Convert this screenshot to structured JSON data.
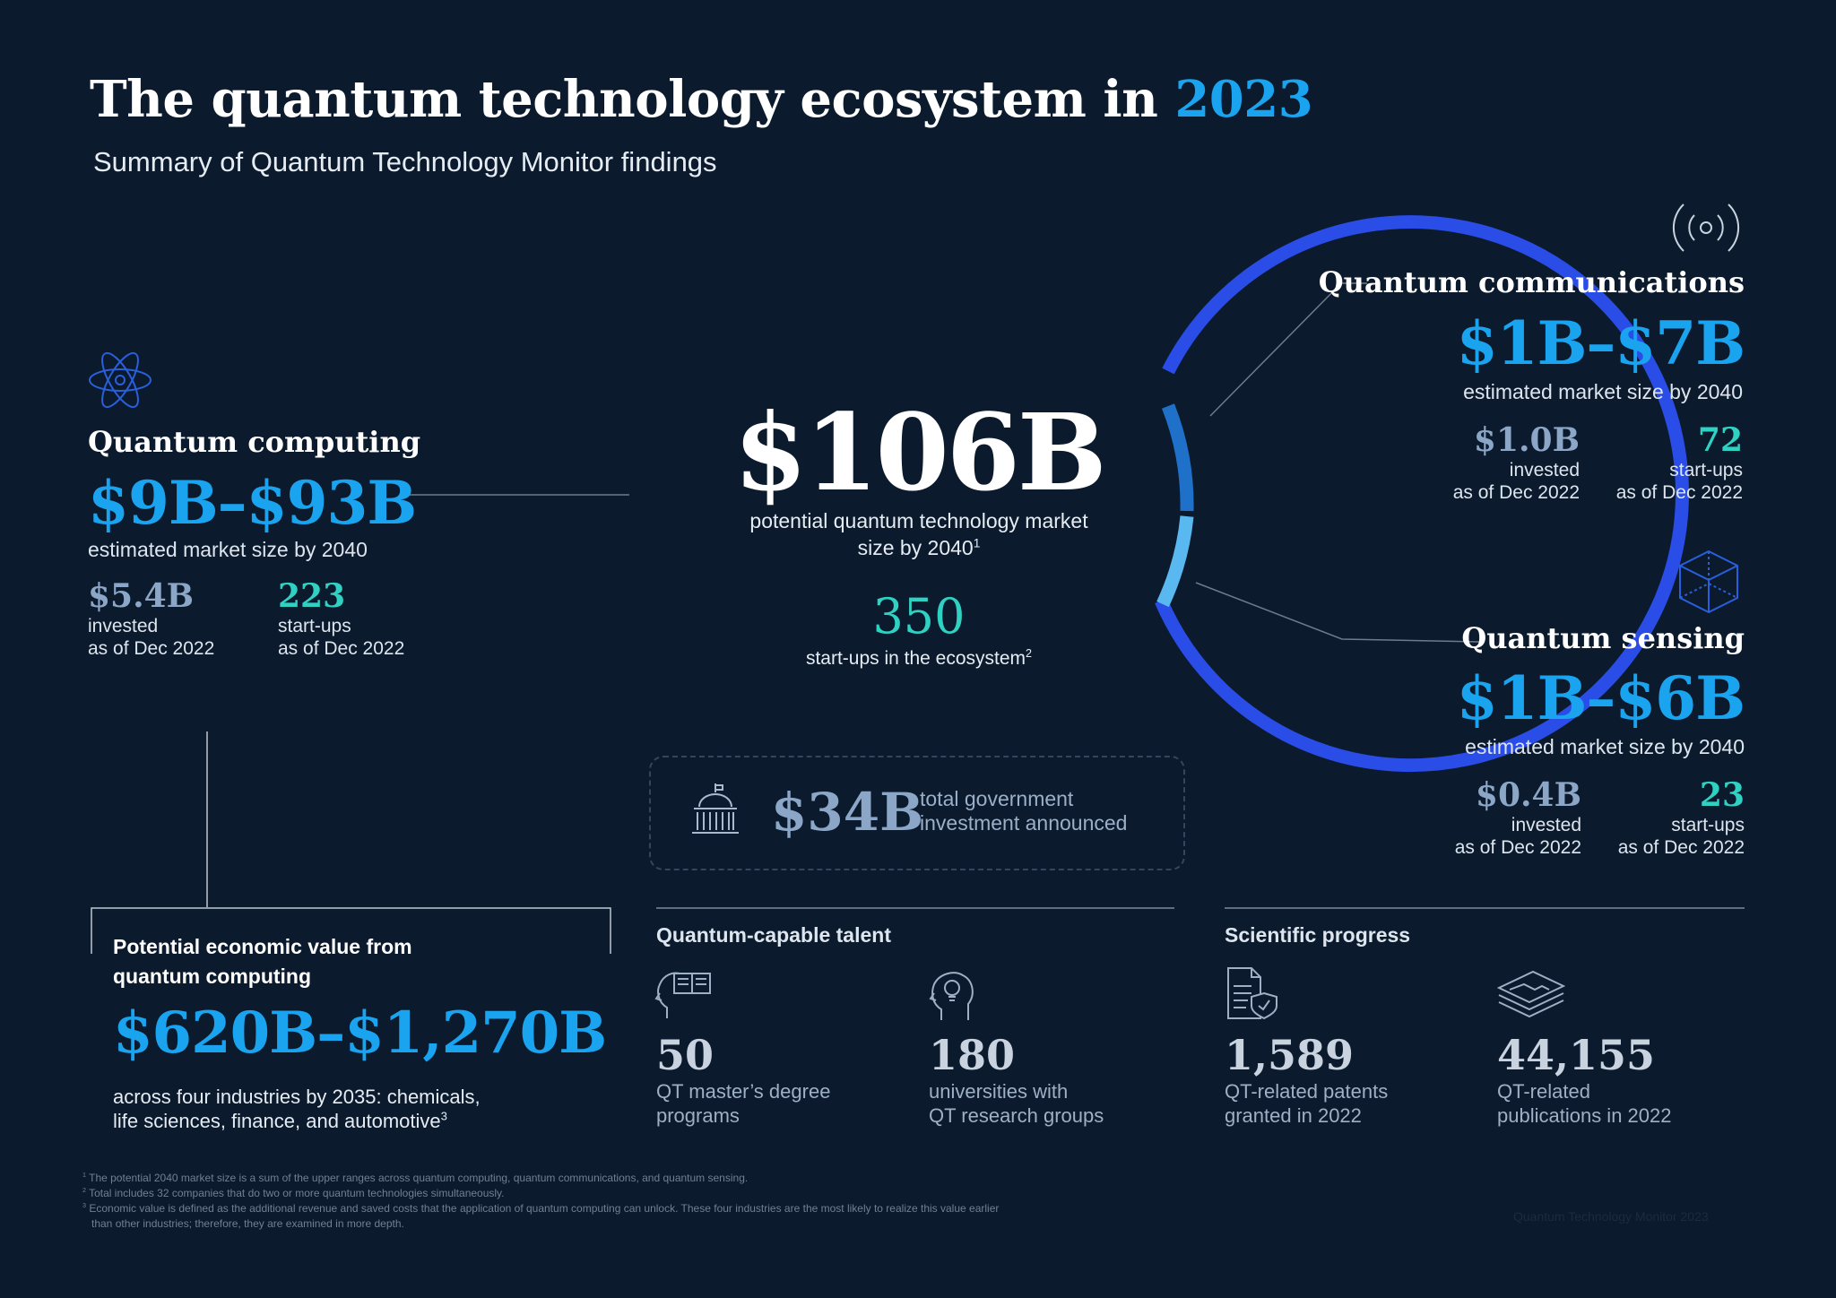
{
  "header": {
    "title_main": "The quantum technology ecosystem in ",
    "title_year": "2023",
    "subtitle": "Summary of Quantum Technology Monitor findings"
  },
  "center": {
    "market_value": "$106B",
    "market_desc_line1": "potential quantum technology market",
    "market_desc_line2": "size by 2040",
    "market_footnote": "1",
    "startups_value": "350",
    "startups_label": "start-ups in the ecosystem",
    "startups_footnote": "2",
    "gov_value": "$34B",
    "gov_label_line1": "total government",
    "gov_label_line2": "investment announced"
  },
  "quantum_computing": {
    "title": "Quantum computing",
    "range": "$9B–$93B",
    "range_desc": "estimated market size by 2040",
    "invested_value": "$5.4B",
    "invested_label": "invested",
    "invested_date": "as of Dec 2022",
    "startups_value": "223",
    "startups_label": "start-ups",
    "startups_date": "as of Dec 2022"
  },
  "quantum_communications": {
    "title": "Quantum communications",
    "range": "$1B–$7B",
    "range_desc": "estimated market size by 2040",
    "invested_value": "$1.0B",
    "invested_label": "invested",
    "invested_date": "as of Dec 2022",
    "startups_value": "72",
    "startups_label": "start-ups",
    "startups_date": "as of Dec 2022"
  },
  "quantum_sensing": {
    "title": "Quantum sensing",
    "range": "$1B–$6B",
    "range_desc": "estimated market size by 2040",
    "invested_value": "$0.4B",
    "invested_label": "invested",
    "invested_date": "as of Dec 2022",
    "startups_value": "23",
    "startups_label": "start-ups",
    "startups_date": "as of Dec 2022"
  },
  "economic_value": {
    "title_line1": "Potential economic value from",
    "title_line2": "quantum computing",
    "value": "$620B–$1,270B",
    "desc_line1": "across four industries by 2035: chemicals,",
    "desc_line2": "life sciences, finance, and automotive",
    "desc_footnote": "3"
  },
  "talent": {
    "title": "Quantum-capable talent",
    "items": [
      {
        "value": "50",
        "line1": "QT master’s degree",
        "line2": "programs"
      },
      {
        "value": "180",
        "line1": "universities with",
        "line2": "QT research groups"
      }
    ]
  },
  "science": {
    "title": "Scientific progress",
    "items": [
      {
        "value": "1,589",
        "line1": "QT-related patents",
        "line2": "granted in 2022"
      },
      {
        "value": "44,155",
        "line1": "QT-related",
        "line2": "publications in 2022"
      }
    ]
  },
  "footnotes": [
    {
      "num": "1",
      "text": "The potential 2040 market size is a sum of the upper ranges across quantum computing, quantum communications, and quantum sensing."
    },
    {
      "num": "2",
      "text": "Total includes 32 companies that do two or more quantum technologies simultaneously."
    },
    {
      "num": "3",
      "text": "Economic value is defined as the additional revenue and saved costs that the application of quantum computing can unlock. These four industries are the most likely to realize this value earlier"
    },
    {
      "num": "",
      "text": "than other industries; therefore, they are examined in more depth."
    }
  ],
  "watermark": "Quantum Technology Monitor 2023",
  "icons": {
    "computing": "atom-icon",
    "communications": "signal-icon",
    "sensing": "cube-icon",
    "government": "capitol-building-icon",
    "talent_1": "head-book-icon",
    "talent_2": "head-lightbulb-icon",
    "science_1": "patent-document-icon",
    "science_2": "stacked-layers-icon"
  },
  "colors": {
    "background": "#0b1a2c",
    "accent_cyan": "#1aa3ef",
    "accent_teal": "#2fd1c2",
    "ring_blue": "#2a4de8",
    "muted_slate": "#8ba6c6"
  }
}
